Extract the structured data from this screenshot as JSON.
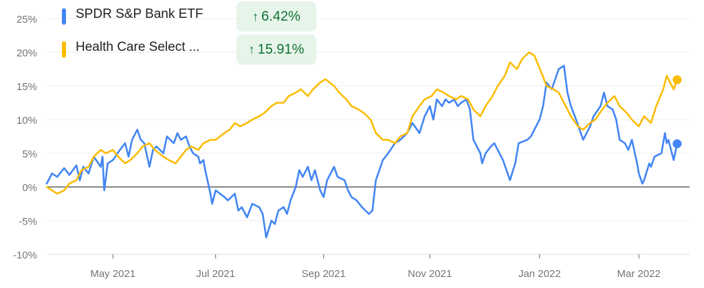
{
  "legend": [
    {
      "name": "SPDR S&P Bank ETF",
      "change": "6.42%",
      "color": "#4285f4",
      "direction": "up",
      "icon": "arrow-up-icon"
    },
    {
      "name": "Health Care Select ...",
      "change": "15.91%",
      "color": "#fbbc04",
      "direction": "up",
      "icon": "arrow-up-icon"
    }
  ],
  "chart_data": {
    "type": "line",
    "y_tick_labels": [
      "25%",
      "20%",
      "15%",
      "10%",
      "5%",
      "0%",
      "-5%",
      "-10%"
    ],
    "y_ticks": [
      25,
      20,
      15,
      10,
      5,
      0,
      -5,
      -10
    ],
    "ylim": [
      -10,
      25
    ],
    "x_tick_labels": [
      "May 2021",
      "Jul 2021",
      "Sep 2021",
      "Nov 2021",
      "Jan 2022",
      "Mar 2022"
    ],
    "x_ticks": [
      "2021-05-03",
      "2021-07-01",
      "2021-09-01",
      "2021-11-01",
      "2022-01-03",
      "2022-03-01"
    ],
    "xlim": [
      "2021-03-26",
      "2022-03-25"
    ],
    "zero_line": true,
    "grid": "horizontal",
    "series": [
      {
        "name": "SPDR S&P Bank ETF",
        "color": "#4285f4",
        "end_label": "6.42%",
        "points": [
          [
            "2021-03-26",
            0.5
          ],
          [
            "2021-03-29",
            2.0
          ],
          [
            "2021-04-01",
            1.5
          ],
          [
            "2021-04-05",
            2.8
          ],
          [
            "2021-04-08",
            1.8
          ],
          [
            "2021-04-12",
            3.2
          ],
          [
            "2021-04-14",
            1.0
          ],
          [
            "2021-04-16",
            3.0
          ],
          [
            "2021-04-19",
            2.0
          ],
          [
            "2021-04-22",
            4.5
          ],
          [
            "2021-04-26",
            3.0
          ],
          [
            "2021-04-27",
            4.5
          ],
          [
            "2021-04-28",
            -0.5
          ],
          [
            "2021-04-30",
            3.5
          ],
          [
            "2021-05-03",
            4.0
          ],
          [
            "2021-05-07",
            5.5
          ],
          [
            "2021-05-10",
            6.5
          ],
          [
            "2021-05-12",
            4.5
          ],
          [
            "2021-05-14",
            7.0
          ],
          [
            "2021-05-17",
            8.5
          ],
          [
            "2021-05-19",
            7.0
          ],
          [
            "2021-05-21",
            6.5
          ],
          [
            "2021-05-24",
            3.0
          ],
          [
            "2021-05-26",
            5.5
          ],
          [
            "2021-05-28",
            6.0
          ],
          [
            "2021-06-01",
            5.0
          ],
          [
            "2021-06-03",
            7.5
          ],
          [
            "2021-06-07",
            6.5
          ],
          [
            "2021-06-09",
            8.0
          ],
          [
            "2021-06-11",
            7.0
          ],
          [
            "2021-06-14",
            7.5
          ],
          [
            "2021-06-16",
            6.0
          ],
          [
            "2021-06-18",
            5.0
          ],
          [
            "2021-06-21",
            4.5
          ],
          [
            "2021-06-22",
            3.5
          ],
          [
            "2021-06-24",
            4.0
          ],
          [
            "2021-06-25",
            2.5
          ],
          [
            "2021-06-28",
            -1.0
          ],
          [
            "2021-06-29",
            -2.5
          ],
          [
            "2021-07-01",
            -0.5
          ],
          [
            "2021-07-06",
            -1.5
          ],
          [
            "2021-07-08",
            -2.0
          ],
          [
            "2021-07-12",
            -1.0
          ],
          [
            "2021-07-14",
            -3.5
          ],
          [
            "2021-07-16",
            -3.0
          ],
          [
            "2021-07-19",
            -4.5
          ],
          [
            "2021-07-22",
            -2.5
          ],
          [
            "2021-07-26",
            -3.0
          ],
          [
            "2021-07-28",
            -4.0
          ],
          [
            "2021-07-30",
            -7.5
          ],
          [
            "2021-08-02",
            -5.0
          ],
          [
            "2021-08-04",
            -5.5
          ],
          [
            "2021-08-06",
            -3.5
          ],
          [
            "2021-08-09",
            -3.0
          ],
          [
            "2021-08-11",
            -4.0
          ],
          [
            "2021-08-13",
            -2.0
          ],
          [
            "2021-08-16",
            0.0
          ],
          [
            "2021-08-18",
            2.5
          ],
          [
            "2021-08-20",
            1.5
          ],
          [
            "2021-08-23",
            3.0
          ],
          [
            "2021-08-25",
            1.0
          ],
          [
            "2021-08-27",
            2.5
          ],
          [
            "2021-08-30",
            -0.5
          ],
          [
            "2021-09-01",
            -1.5
          ],
          [
            "2021-09-03",
            1.0
          ],
          [
            "2021-09-07",
            3.0
          ],
          [
            "2021-09-09",
            1.5
          ],
          [
            "2021-09-13",
            1.0
          ],
          [
            "2021-09-15",
            -0.5
          ],
          [
            "2021-09-17",
            -1.5
          ],
          [
            "2021-09-20",
            -2.0
          ],
          [
            "2021-09-23",
            -3.0
          ],
          [
            "2021-09-27",
            -4.0
          ],
          [
            "2021-09-29",
            -3.5
          ],
          [
            "2021-10-01",
            1.0
          ],
          [
            "2021-10-05",
            4.0
          ],
          [
            "2021-10-08",
            5.0
          ],
          [
            "2021-10-12",
            6.5
          ],
          [
            "2021-10-15",
            7.0
          ],
          [
            "2021-10-19",
            8.0
          ],
          [
            "2021-10-22",
            9.5
          ],
          [
            "2021-10-26",
            8.0
          ],
          [
            "2021-10-29",
            10.5
          ],
          [
            "2021-11-01",
            12.0
          ],
          [
            "2021-11-03",
            10.0
          ],
          [
            "2021-11-05",
            13.0
          ],
          [
            "2021-11-08",
            12.0
          ],
          [
            "2021-11-10",
            13.0
          ],
          [
            "2021-11-12",
            12.5
          ],
          [
            "2021-11-15",
            13.0
          ],
          [
            "2021-11-17",
            12.0
          ],
          [
            "2021-11-19",
            12.5
          ],
          [
            "2021-11-22",
            13.0
          ],
          [
            "2021-11-24",
            11.5
          ],
          [
            "2021-11-26",
            7.0
          ],
          [
            "2021-11-30",
            5.0
          ],
          [
            "2021-12-01",
            3.5
          ],
          [
            "2021-12-03",
            5.0
          ],
          [
            "2021-12-06",
            6.0
          ],
          [
            "2021-12-08",
            6.5
          ],
          [
            "2021-12-10",
            5.5
          ],
          [
            "2021-12-13",
            4.0
          ],
          [
            "2021-12-15",
            2.5
          ],
          [
            "2021-12-17",
            1.0
          ],
          [
            "2021-12-20",
            3.5
          ],
          [
            "2021-12-22",
            6.5
          ],
          [
            "2021-12-27",
            7.0
          ],
          [
            "2021-12-29",
            7.5
          ],
          [
            "2022-01-03",
            10.0
          ],
          [
            "2022-01-05",
            12.0
          ],
          [
            "2022-01-07",
            15.5
          ],
          [
            "2022-01-10",
            14.5
          ],
          [
            "2022-01-12",
            16.0
          ],
          [
            "2022-01-14",
            17.5
          ],
          [
            "2022-01-17",
            18.0
          ],
          [
            "2022-01-19",
            14.0
          ],
          [
            "2022-01-21",
            12.0
          ],
          [
            "2022-01-24",
            10.0
          ],
          [
            "2022-01-26",
            8.5
          ],
          [
            "2022-01-28",
            7.0
          ],
          [
            "2022-02-01",
            9.0
          ],
          [
            "2022-02-03",
            10.5
          ],
          [
            "2022-02-07",
            12.0
          ],
          [
            "2022-02-09",
            14.0
          ],
          [
            "2022-02-11",
            12.0
          ],
          [
            "2022-02-14",
            11.5
          ],
          [
            "2022-02-16",
            10.0
          ],
          [
            "2022-02-18",
            7.0
          ],
          [
            "2022-02-21",
            6.5
          ],
          [
            "2022-02-23",
            5.5
          ],
          [
            "2022-02-25",
            7.0
          ],
          [
            "2022-02-28",
            3.5
          ],
          [
            "2022-03-01",
            2.0
          ],
          [
            "2022-03-03",
            0.5
          ],
          [
            "2022-03-04",
            1.0
          ],
          [
            "2022-03-07",
            3.5
          ],
          [
            "2022-03-08",
            3.0
          ],
          [
            "2022-03-10",
            4.5
          ],
          [
            "2022-03-14",
            5.0
          ],
          [
            "2022-03-16",
            8.0
          ],
          [
            "2022-03-17",
            6.5
          ],
          [
            "2022-03-18",
            7.0
          ],
          [
            "2022-03-21",
            4.0
          ],
          [
            "2022-03-23",
            6.42
          ]
        ]
      },
      {
        "name": "Health Care Select ...",
        "color": "#fbbc04",
        "end_label": "15.91%",
        "points": [
          [
            "2021-03-26",
            0.0
          ],
          [
            "2021-03-29",
            -0.5
          ],
          [
            "2021-04-01",
            -1.0
          ],
          [
            "2021-04-05",
            -0.5
          ],
          [
            "2021-04-08",
            0.5
          ],
          [
            "2021-04-12",
            1.0
          ],
          [
            "2021-04-15",
            2.5
          ],
          [
            "2021-04-19",
            3.0
          ],
          [
            "2021-04-22",
            4.5
          ],
          [
            "2021-04-26",
            5.5
          ],
          [
            "2021-04-29",
            5.0
          ],
          [
            "2021-05-03",
            5.5
          ],
          [
            "2021-05-06",
            4.5
          ],
          [
            "2021-05-10",
            3.5
          ],
          [
            "2021-05-13",
            4.0
          ],
          [
            "2021-05-17",
            5.0
          ],
          [
            "2021-05-20",
            6.0
          ],
          [
            "2021-05-24",
            6.5
          ],
          [
            "2021-05-27",
            5.5
          ],
          [
            "2021-06-01",
            4.5
          ],
          [
            "2021-06-04",
            4.0
          ],
          [
            "2021-06-08",
            3.5
          ],
          [
            "2021-06-11",
            4.5
          ],
          [
            "2021-06-14",
            5.5
          ],
          [
            "2021-06-17",
            6.0
          ],
          [
            "2021-06-21",
            5.5
          ],
          [
            "2021-06-24",
            6.5
          ],
          [
            "2021-06-28",
            7.0
          ],
          [
            "2021-07-01",
            7.0
          ],
          [
            "2021-07-06",
            8.0
          ],
          [
            "2021-07-09",
            8.5
          ],
          [
            "2021-07-12",
            9.5
          ],
          [
            "2021-07-15",
            9.0
          ],
          [
            "2021-07-19",
            9.5
          ],
          [
            "2021-07-22",
            10.0
          ],
          [
            "2021-07-26",
            10.5
          ],
          [
            "2021-07-29",
            11.0
          ],
          [
            "2021-08-02",
            12.0
          ],
          [
            "2021-08-05",
            12.5
          ],
          [
            "2021-08-09",
            12.5
          ],
          [
            "2021-08-12",
            13.5
          ],
          [
            "2021-08-16",
            14.0
          ],
          [
            "2021-08-19",
            14.5
          ],
          [
            "2021-08-23",
            13.5
          ],
          [
            "2021-08-26",
            14.5
          ],
          [
            "2021-08-30",
            15.5
          ],
          [
            "2021-09-02",
            16.0
          ],
          [
            "2021-09-07",
            15.0
          ],
          [
            "2021-09-10",
            14.0
          ],
          [
            "2021-09-14",
            13.0
          ],
          [
            "2021-09-17",
            12.0
          ],
          [
            "2021-09-21",
            11.5
          ],
          [
            "2021-09-24",
            11.0
          ],
          [
            "2021-09-28",
            10.0
          ],
          [
            "2021-10-01",
            8.0
          ],
          [
            "2021-10-05",
            7.0
          ],
          [
            "2021-10-08",
            7.0
          ],
          [
            "2021-10-12",
            6.5
          ],
          [
            "2021-10-15",
            7.5
          ],
          [
            "2021-10-19",
            8.0
          ],
          [
            "2021-10-22",
            10.5
          ],
          [
            "2021-10-26",
            12.0
          ],
          [
            "2021-10-29",
            13.0
          ],
          [
            "2021-11-02",
            13.5
          ],
          [
            "2021-11-05",
            14.5
          ],
          [
            "2021-11-09",
            14.0
          ],
          [
            "2021-11-12",
            13.5
          ],
          [
            "2021-11-16",
            13.0
          ],
          [
            "2021-11-19",
            13.5
          ],
          [
            "2021-11-23",
            13.0
          ],
          [
            "2021-11-26",
            11.5
          ],
          [
            "2021-11-30",
            10.5
          ],
          [
            "2021-12-03",
            12.0
          ],
          [
            "2021-12-07",
            13.5
          ],
          [
            "2021-12-10",
            15.0
          ],
          [
            "2021-12-14",
            16.5
          ],
          [
            "2021-12-17",
            18.5
          ],
          [
            "2021-12-21",
            17.5
          ],
          [
            "2021-12-24",
            19.0
          ],
          [
            "2021-12-28",
            20.0
          ],
          [
            "2021-12-31",
            19.5
          ],
          [
            "2022-01-04",
            17.0
          ],
          [
            "2022-01-07",
            15.0
          ],
          [
            "2022-01-11",
            14.5
          ],
          [
            "2022-01-14",
            14.0
          ],
          [
            "2022-01-18",
            12.0
          ],
          [
            "2022-01-21",
            10.5
          ],
          [
            "2022-01-25",
            9.0
          ],
          [
            "2022-01-28",
            8.5
          ],
          [
            "2022-02-01",
            9.5
          ],
          [
            "2022-02-04",
            10.0
          ],
          [
            "2022-02-08",
            11.5
          ],
          [
            "2022-02-11",
            12.5
          ],
          [
            "2022-02-15",
            13.5
          ],
          [
            "2022-02-18",
            12.0
          ],
          [
            "2022-02-22",
            11.0
          ],
          [
            "2022-02-25",
            10.0
          ],
          [
            "2022-03-01",
            9.0
          ],
          [
            "2022-03-04",
            10.5
          ],
          [
            "2022-03-08",
            9.5
          ],
          [
            "2022-03-11",
            12.0
          ],
          [
            "2022-03-15",
            14.5
          ],
          [
            "2022-03-17",
            16.5
          ],
          [
            "2022-03-21",
            14.5
          ],
          [
            "2022-03-23",
            15.91
          ]
        ]
      }
    ]
  }
}
